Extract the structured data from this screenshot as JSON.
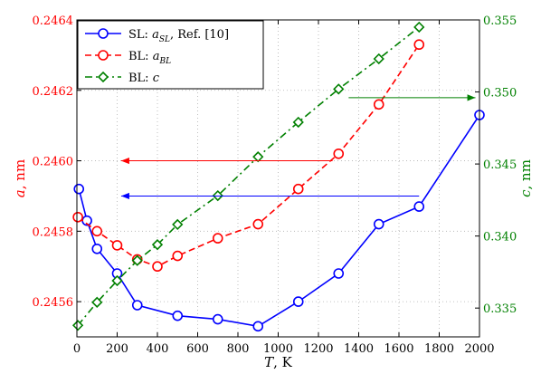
{
  "chart_data": {
    "type": "line",
    "xlabel": {
      "var": "T",
      "unit": ", K"
    },
    "xlim": [
      0,
      2000
    ],
    "x_ticks": [
      "0",
      "200",
      "400",
      "600",
      "800",
      "1000",
      "1200",
      "1400",
      "1600",
      "1800",
      "2000"
    ],
    "y_left": {
      "label": {
        "var": "a",
        "unit": ", nm"
      },
      "lim": [
        0.2455,
        0.2464
      ],
      "ticks": [
        "0.2456",
        "0.2458",
        "0.2460",
        "0.2462",
        "0.2464"
      ],
      "color": "#ff0000"
    },
    "y_right": {
      "label": {
        "var": "c",
        "unit": ", nm"
      },
      "lim": [
        0.333,
        0.355
      ],
      "ticks": [
        "0.335",
        "0.340",
        "0.345",
        "0.350",
        "0.355"
      ],
      "color": "#008000"
    },
    "grid": true,
    "legend_position": "top-left",
    "series": [
      {
        "name": "SL: a_SL, Ref. [10]",
        "legend": {
          "pre": "SL: ",
          "var": "a",
          "sub": "SL",
          "post": ", Ref. [10]"
        },
        "axis": "left",
        "color": "#0000ff",
        "line_style": "solid",
        "marker": "circle",
        "x": [
          10,
          50,
          100,
          200,
          300,
          500,
          700,
          900,
          1100,
          1300,
          1500,
          1700,
          2000
        ],
        "y": [
          0.24592,
          0.24583,
          0.24575,
          0.24568,
          0.24559,
          0.24556,
          0.24555,
          0.24553,
          0.2456,
          0.24568,
          0.24582,
          0.24587,
          0.24613
        ]
      },
      {
        "name": "BL: a_BL",
        "legend": {
          "pre": "BL: ",
          "var": "a",
          "sub": "BL",
          "post": ""
        },
        "axis": "left",
        "color": "#ff0000",
        "line_style": "dashed",
        "marker": "circle",
        "x": [
          5,
          100,
          200,
          300,
          400,
          500,
          700,
          900,
          1100,
          1300,
          1500,
          1700
        ],
        "y": [
          0.24584,
          0.2458,
          0.24576,
          0.24572,
          0.2457,
          0.24573,
          0.24578,
          0.24582,
          0.24592,
          0.24602,
          0.24616,
          0.24633
        ]
      },
      {
        "name": "BL: c",
        "legend": {
          "pre": "BL: ",
          "var": "c",
          "sub": "",
          "post": ""
        },
        "axis": "right",
        "color": "#008000",
        "line_style": "dashdot",
        "marker": "diamond",
        "x": [
          5,
          100,
          200,
          300,
          400,
          500,
          700,
          900,
          1100,
          1300,
          1500,
          1700
        ],
        "y": [
          0.3338,
          0.3354,
          0.3369,
          0.3383,
          0.3394,
          0.3408,
          0.3428,
          0.3455,
          0.3479,
          0.3502,
          0.3523,
          0.3545
        ]
      }
    ],
    "annotations": [
      {
        "type": "arrow",
        "target_axis": "left",
        "color": "#ff0000",
        "from": {
          "x": 1270,
          "y": 0.246
        },
        "to": {
          "x": 220,
          "y": 0.246
        }
      },
      {
        "type": "arrow",
        "target_axis": "left",
        "color": "#0000ff",
        "from": {
          "x": 1700,
          "y": 0.2459
        },
        "to": {
          "x": 220,
          "y": 0.2459
        }
      },
      {
        "type": "arrow",
        "target_axis": "right",
        "color": "#008000",
        "from": {
          "x": 1350,
          "y": 0.3496
        },
        "to": {
          "x": 1980,
          "y": 0.3496
        }
      }
    ]
  }
}
